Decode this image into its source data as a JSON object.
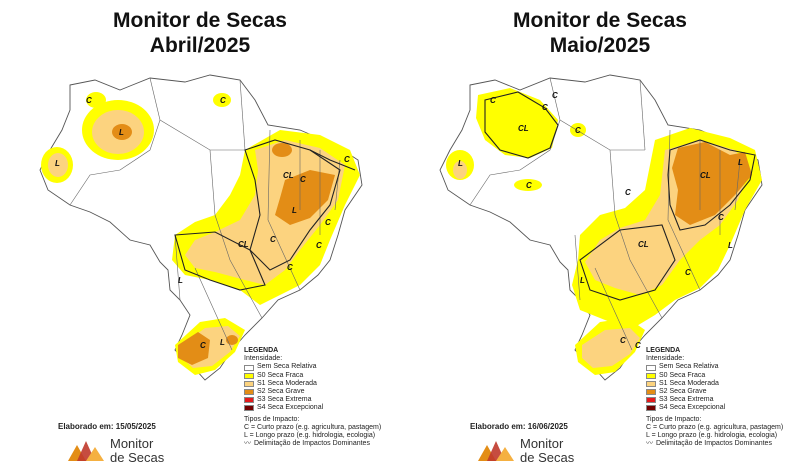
{
  "left": {
    "title_line1": "Monitor de Secas",
    "title_line2": "Abril/2025",
    "elaborado": "Elaborado em: 15/05/2025",
    "labels": [
      "C",
      "C",
      "L",
      "L",
      "CL",
      "L",
      "C",
      "C",
      "CL",
      "C",
      "C",
      "C",
      "L",
      "C",
      "L",
      "C"
    ]
  },
  "right": {
    "title_line1": "Monitor de Secas",
    "title_line2": "Maio/2025",
    "elaborado": "Elaborado em: 16/06/2025",
    "labels": [
      "C",
      "C",
      "C",
      "CL",
      "C",
      "L",
      "C",
      "C",
      "CL",
      "L",
      "C",
      "CL",
      "L",
      "C",
      "L",
      "C",
      "C"
    ]
  },
  "legend": {
    "title": "LEGENDA",
    "intensity_title": "Intensidade:",
    "items": [
      {
        "label": "Sem Seca Relativa",
        "color": "#ffffff"
      },
      {
        "label": "S0 Seca Fraca",
        "color": "#ffff00"
      },
      {
        "label": "S1 Seca Moderada",
        "color": "#fcd37f"
      },
      {
        "label": "S2 Seca Grave",
        "color": "#e38d16"
      },
      {
        "label": "S3 Seca Extrema",
        "color": "#e41a1c"
      },
      {
        "label": "S4 Seca Excepcional",
        "color": "#730000"
      }
    ],
    "impact_title": "Tipos de Impacto:",
    "impact_c": "C = Curto prazo (e.g. agricultura, pastagem)",
    "impact_l": "L = Longo prazo (e.g. hidrologia, ecologia)",
    "impact_line": "Delimitação de Impactos Dominantes"
  },
  "logo": {
    "line1": "Monitor",
    "line2": "de Secas",
    "colors": [
      "#e38d16",
      "#c0392b",
      "#f5b041"
    ]
  }
}
